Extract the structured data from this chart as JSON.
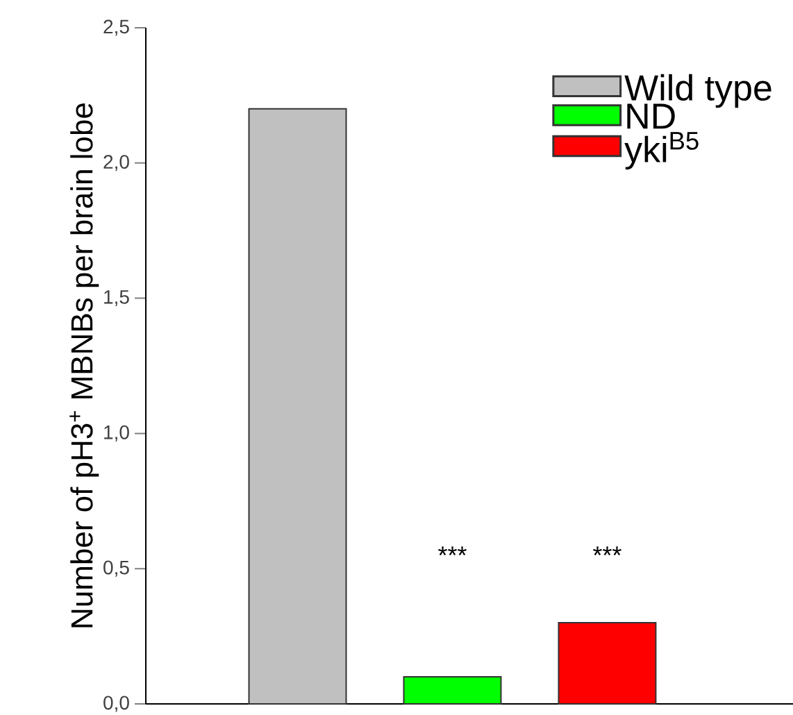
{
  "chart_data": {
    "type": "bar",
    "ylabel": "Number of pH3$^{+}$ MBNBs per brain lobe",
    "categories": [
      null,
      null,
      null
    ],
    "series": [
      {
        "name": "Wild type",
        "color": "#c0c0c0",
        "values": [
          2.2,
          null,
          null
        ]
      },
      {
        "name": "ND",
        "color": "#00ff00",
        "values": [
          null,
          0.1,
          null
        ]
      },
      {
        "name": "yki$^{B5}$",
        "color": "#ff0000",
        "values": [
          null,
          null,
          0.3
        ]
      }
    ],
    "ylim": [
      0,
      2.5
    ],
    "yticks": [
      {
        "value": 0,
        "label": "0,0"
      },
      {
        "value": 0.5,
        "label": "0,5"
      },
      {
        "value": 1,
        "label": "1,0"
      },
      {
        "value": 1.5,
        "label": "1,5"
      },
      {
        "value": 2,
        "label": "2,0"
      },
      {
        "value": 2.5,
        "label": "2,5"
      }
    ],
    "annotations": [
      "***",
      "***"
    ],
    "legend": "top right"
  }
}
